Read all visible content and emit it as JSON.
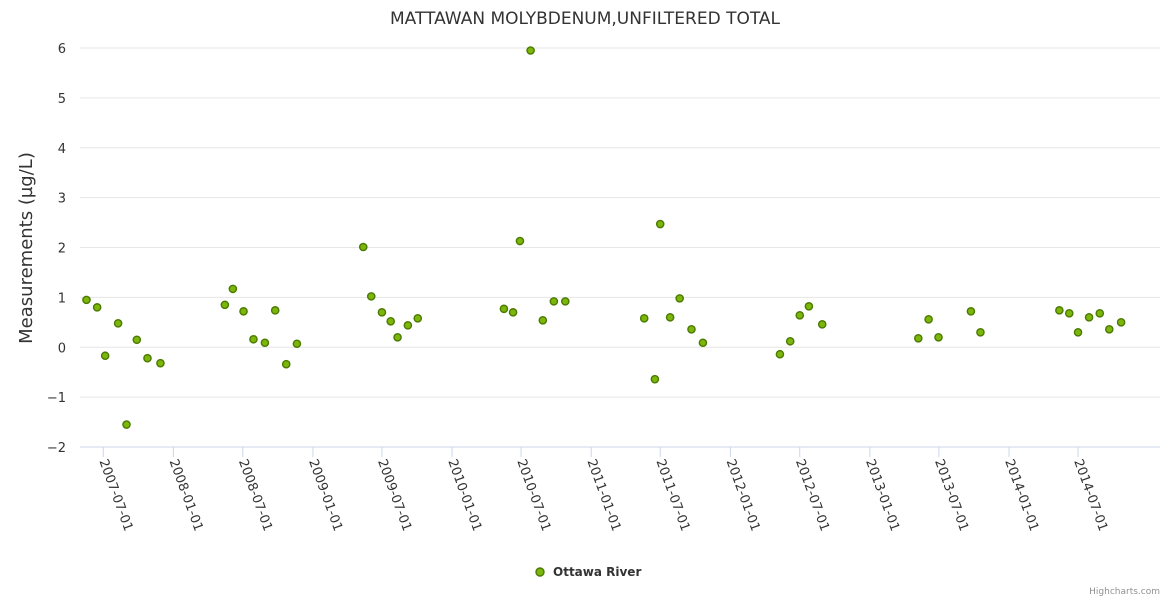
{
  "chart_data": {
    "type": "scatter",
    "title": "MATTAWAN MOLYBDENUM,UNFILTERED TOTAL",
    "ylabel": "Measurements (µg/L)",
    "xlabel": "",
    "ylim": [
      -2,
      6
    ],
    "yticks": [
      "−2",
      "−1",
      "0",
      "1",
      "2",
      "3",
      "4",
      "5",
      "6"
    ],
    "yticks_values": [
      -2,
      -1,
      0,
      1,
      2,
      3,
      4,
      5,
      6
    ],
    "xlim": [
      "2007-05-01",
      "2015-02-01"
    ],
    "xticks": [
      "2007-07-01",
      "2008-01-01",
      "2008-07-01",
      "2009-01-01",
      "2009-07-01",
      "2010-01-01",
      "2010-07-01",
      "2011-01-01",
      "2011-07-01",
      "2012-01-01",
      "2012-07-01",
      "2013-01-01",
      "2013-07-01",
      "2014-01-01",
      "2014-07-01"
    ],
    "series": [
      {
        "name": "Ottawa River",
        "color": "#7cb60a",
        "marker_stroke": "#4a7a00",
        "points": [
          {
            "x": "2007-05-18",
            "y": 0.95
          },
          {
            "x": "2007-06-15",
            "y": 0.8
          },
          {
            "x": "2007-07-06",
            "y": -0.17
          },
          {
            "x": "2007-08-09",
            "y": 0.48
          },
          {
            "x": "2007-08-31",
            "y": -1.55
          },
          {
            "x": "2007-09-27",
            "y": 0.15
          },
          {
            "x": "2007-10-25",
            "y": -0.22
          },
          {
            "x": "2007-11-28",
            "y": -0.32
          },
          {
            "x": "2008-05-15",
            "y": 0.85
          },
          {
            "x": "2008-06-05",
            "y": 1.17
          },
          {
            "x": "2008-07-03",
            "y": 0.72
          },
          {
            "x": "2008-07-29",
            "y": 0.16
          },
          {
            "x": "2008-08-28",
            "y": 0.09
          },
          {
            "x": "2008-09-24",
            "y": 0.74
          },
          {
            "x": "2008-10-23",
            "y": -0.34
          },
          {
            "x": "2008-11-20",
            "y": 0.07
          },
          {
            "x": "2009-05-13",
            "y": 2.01
          },
          {
            "x": "2009-06-03",
            "y": 1.02
          },
          {
            "x": "2009-07-01",
            "y": 0.7
          },
          {
            "x": "2009-07-24",
            "y": 0.52
          },
          {
            "x": "2009-08-11",
            "y": 0.2
          },
          {
            "x": "2009-09-07",
            "y": 0.44
          },
          {
            "x": "2009-10-03",
            "y": 0.58
          },
          {
            "x": "2010-05-17",
            "y": 0.77
          },
          {
            "x": "2010-06-10",
            "y": 0.7
          },
          {
            "x": "2010-06-28",
            "y": 2.13
          },
          {
            "x": "2010-07-26",
            "y": 5.95
          },
          {
            "x": "2010-08-27",
            "y": 0.54
          },
          {
            "x": "2010-09-25",
            "y": 0.92
          },
          {
            "x": "2010-10-25",
            "y": 0.92
          },
          {
            "x": "2011-05-20",
            "y": 0.58
          },
          {
            "x": "2011-06-17",
            "y": -0.64
          },
          {
            "x": "2011-07-01",
            "y": 2.47
          },
          {
            "x": "2011-07-27",
            "y": 0.6
          },
          {
            "x": "2011-08-21",
            "y": 0.98
          },
          {
            "x": "2011-09-21",
            "y": 0.36
          },
          {
            "x": "2011-10-21",
            "y": 0.09
          },
          {
            "x": "2012-05-10",
            "y": -0.14
          },
          {
            "x": "2012-06-06",
            "y": 0.12
          },
          {
            "x": "2012-07-01",
            "y": 0.64
          },
          {
            "x": "2012-07-25",
            "y": 0.82
          },
          {
            "x": "2012-08-29",
            "y": 0.46
          },
          {
            "x": "2013-05-08",
            "y": 0.18
          },
          {
            "x": "2013-06-04",
            "y": 0.56
          },
          {
            "x": "2013-06-30",
            "y": 0.2
          },
          {
            "x": "2013-09-23",
            "y": 0.72
          },
          {
            "x": "2013-10-18",
            "y": 0.3
          },
          {
            "x": "2014-05-13",
            "y": 0.74
          },
          {
            "x": "2014-06-08",
            "y": 0.68
          },
          {
            "x": "2014-07-01",
            "y": 0.3
          },
          {
            "x": "2014-07-30",
            "y": 0.6
          },
          {
            "x": "2014-08-27",
            "y": 0.68
          },
          {
            "x": "2014-09-21",
            "y": 0.36
          },
          {
            "x": "2014-10-22",
            "y": 0.5
          }
        ]
      }
    ],
    "legend": [
      "Ottawa River"
    ],
    "legend_position": "bottom-center",
    "credits": "Highcharts.com",
    "grid": true
  }
}
